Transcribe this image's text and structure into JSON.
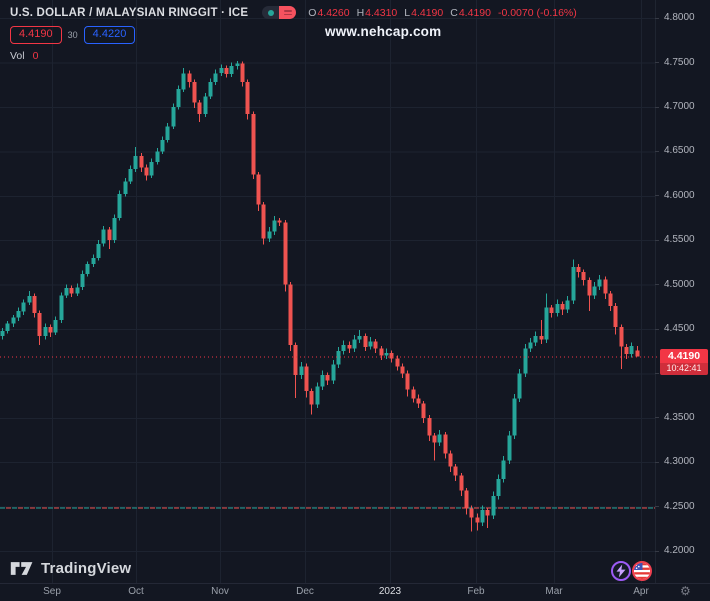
{
  "header": {
    "symbol": "U.S. DOLLAR / MALAYSIAN RINGGIT · ICE",
    "ohlc": {
      "open_label": "O",
      "open": "4.4260",
      "high_label": "H",
      "high": "4.4310",
      "low_label": "L",
      "low": "4.4190",
      "close_label": "C",
      "close": "4.4190",
      "change": "-0.0070 (-0.16%)"
    },
    "quote": {
      "bid": "4.4190",
      "spread": "30",
      "ask": "4.4220"
    },
    "volume": {
      "label": "Vol",
      "value": "0"
    }
  },
  "watermark": "www.nehcap.com",
  "price_badge": {
    "price": "4.4190",
    "countdown": "10:42:41",
    "bg": "#f23645"
  },
  "footer": {
    "brand": "TradingView"
  },
  "chart_data": {
    "type": "candlestick",
    "title": "U.S. Dollar / Malaysian Ringgit",
    "exchange": "ICE",
    "ylim": [
      4.2,
      4.8
    ],
    "grid": true,
    "colors": {
      "up": "#26a69a",
      "down": "#ef5350",
      "grid": "#1d2330",
      "price_line": "#f23645"
    },
    "price_axis": {
      "ticks": [
        {
          "label": "4.8000",
          "value": 4.8
        },
        {
          "label": "4.7500",
          "value": 4.75
        },
        {
          "label": "4.7000",
          "value": 4.7
        },
        {
          "label": "4.6500",
          "value": 4.65
        },
        {
          "label": "4.6000",
          "value": 4.6
        },
        {
          "label": "4.5500",
          "value": 4.55
        },
        {
          "label": "4.5000",
          "value": 4.5
        },
        {
          "label": "4.4500",
          "value": 4.45
        },
        {
          "label": "4.4000",
          "value": 4.4
        },
        {
          "label": "4.3500",
          "value": 4.35
        },
        {
          "label": "4.3000",
          "value": 4.3
        },
        {
          "label": "4.2500",
          "value": 4.25
        },
        {
          "label": "4.2000",
          "value": 4.2
        }
      ]
    },
    "time_axis": {
      "ticks": [
        {
          "label": "Sep",
          "x": 52
        },
        {
          "label": "Oct",
          "x": 136
        },
        {
          "label": "Nov",
          "x": 220
        },
        {
          "label": "Dec",
          "x": 305
        },
        {
          "label": "2023",
          "x": 390,
          "year": true
        },
        {
          "label": "Feb",
          "x": 476
        },
        {
          "label": "Mar",
          "x": 554
        },
        {
          "label": "Apr",
          "x": 641
        }
      ]
    },
    "last_price": 4.419,
    "level_line": {
      "value": 4.249,
      "colors": [
        "#26a69a",
        "#ef5350"
      ]
    },
    "candles": [
      [
        4.442,
        4.451,
        4.438,
        4.448
      ],
      [
        4.448,
        4.459,
        4.445,
        4.456
      ],
      [
        4.456,
        4.466,
        4.452,
        4.463
      ],
      [
        4.463,
        4.474,
        4.459,
        4.47
      ],
      [
        4.47,
        4.483,
        4.466,
        4.48
      ],
      [
        4.48,
        4.493,
        4.477,
        4.487
      ],
      [
        4.487,
        4.49,
        4.463,
        4.468
      ],
      [
        4.468,
        4.471,
        4.432,
        4.442
      ],
      [
        4.442,
        4.456,
        4.438,
        4.452
      ],
      [
        4.452,
        4.455,
        4.441,
        4.446
      ],
      [
        4.446,
        4.464,
        4.443,
        4.46
      ],
      [
        4.46,
        4.491,
        4.457,
        4.488
      ],
      [
        4.488,
        4.5,
        4.485,
        4.496
      ],
      [
        4.496,
        4.499,
        4.486,
        4.49
      ],
      [
        4.49,
        4.501,
        4.487,
        4.497
      ],
      [
        4.497,
        4.516,
        4.494,
        4.512
      ],
      [
        4.512,
        4.526,
        4.509,
        4.523
      ],
      [
        4.523,
        4.534,
        4.52,
        4.53
      ],
      [
        4.53,
        4.55,
        4.527,
        4.546
      ],
      [
        4.546,
        4.566,
        4.543,
        4.562
      ],
      [
        4.562,
        4.565,
        4.54,
        4.55
      ],
      [
        4.55,
        4.579,
        4.547,
        4.575
      ],
      [
        4.575,
        4.606,
        4.572,
        4.602
      ],
      [
        4.602,
        4.62,
        4.599,
        4.616
      ],
      [
        4.616,
        4.634,
        4.613,
        4.63
      ],
      [
        4.63,
        4.655,
        4.627,
        4.645
      ],
      [
        4.645,
        4.648,
        4.627,
        4.632
      ],
      [
        4.632,
        4.635,
        4.617,
        4.623
      ],
      [
        4.623,
        4.642,
        4.62,
        4.638
      ],
      [
        4.638,
        4.654,
        4.635,
        4.65
      ],
      [
        4.65,
        4.667,
        4.647,
        4.663
      ],
      [
        4.663,
        4.682,
        4.66,
        4.678
      ],
      [
        4.678,
        4.704,
        4.675,
        4.7
      ],
      [
        4.7,
        4.724,
        4.697,
        4.72
      ],
      [
        4.72,
        4.744,
        4.717,
        4.738
      ],
      [
        4.738,
        4.741,
        4.722,
        4.728
      ],
      [
        4.728,
        4.731,
        4.699,
        4.705
      ],
      [
        4.705,
        4.708,
        4.683,
        4.692
      ],
      [
        4.692,
        4.716,
        4.689,
        4.712
      ],
      [
        4.712,
        4.732,
        4.709,
        4.728
      ],
      [
        4.728,
        4.742,
        4.725,
        4.738
      ],
      [
        4.738,
        4.748,
        4.735,
        4.744
      ],
      [
        4.744,
        4.747,
        4.733,
        4.737
      ],
      [
        4.737,
        4.75,
        4.734,
        4.746
      ],
      [
        4.746,
        4.752,
        4.742,
        4.749
      ],
      [
        4.749,
        4.751,
        4.723,
        4.728
      ],
      [
        4.728,
        4.731,
        4.686,
        4.692
      ],
      [
        4.692,
        4.695,
        4.619,
        4.624
      ],
      [
        4.624,
        4.627,
        4.583,
        4.59
      ],
      [
        4.59,
        4.593,
        4.545,
        4.552
      ],
      [
        4.552,
        4.565,
        4.548,
        4.56
      ],
      [
        4.56,
        4.577,
        4.556,
        4.572
      ],
      [
        4.572,
        4.575,
        4.566,
        4.57
      ],
      [
        4.57,
        4.573,
        4.492,
        4.5
      ],
      [
        4.5,
        4.503,
        4.425,
        4.432
      ],
      [
        4.432,
        4.435,
        4.372,
        4.398
      ],
      [
        4.398,
        4.413,
        4.394,
        4.408
      ],
      [
        4.408,
        4.411,
        4.373,
        4.38
      ],
      [
        4.38,
        4.383,
        4.354,
        4.365
      ],
      [
        4.365,
        4.39,
        4.361,
        4.385
      ],
      [
        4.385,
        4.403,
        4.381,
        4.398
      ],
      [
        4.398,
        4.401,
        4.387,
        4.392
      ],
      [
        4.392,
        4.415,
        4.388,
        4.41
      ],
      [
        4.41,
        4.43,
        4.406,
        4.425
      ],
      [
        4.425,
        4.437,
        4.421,
        4.432
      ],
      [
        4.432,
        4.436,
        4.423,
        4.428
      ],
      [
        4.428,
        4.443,
        4.424,
        4.438
      ],
      [
        4.438,
        4.449,
        4.434,
        4.442
      ],
      [
        4.442,
        4.445,
        4.425,
        4.43
      ],
      [
        4.43,
        4.441,
        4.427,
        4.436
      ],
      [
        4.436,
        4.439,
        4.423,
        4.428
      ],
      [
        4.428,
        4.431,
        4.415,
        4.42
      ],
      [
        4.42,
        4.428,
        4.416,
        4.423
      ],
      [
        4.423,
        4.426,
        4.412,
        4.417
      ],
      [
        4.417,
        4.42,
        4.403,
        4.408
      ],
      [
        4.408,
        4.411,
        4.395,
        4.4
      ],
      [
        4.4,
        4.403,
        4.374,
        4.382
      ],
      [
        4.382,
        4.385,
        4.367,
        4.372
      ],
      [
        4.372,
        4.376,
        4.361,
        4.366
      ],
      [
        4.366,
        4.369,
        4.344,
        4.35
      ],
      [
        4.35,
        4.353,
        4.324,
        4.33
      ],
      [
        4.33,
        4.333,
        4.302,
        4.322
      ],
      [
        4.322,
        4.336,
        4.318,
        4.331
      ],
      [
        4.331,
        4.334,
        4.304,
        4.31
      ],
      [
        4.31,
        4.313,
        4.289,
        4.295
      ],
      [
        4.295,
        4.298,
        4.279,
        4.285
      ],
      [
        4.285,
        4.288,
        4.262,
        4.268
      ],
      [
        4.268,
        4.271,
        4.241,
        4.248
      ],
      [
        4.248,
        4.251,
        4.222,
        4.238
      ],
      [
        4.238,
        4.242,
        4.223,
        4.232
      ],
      [
        4.232,
        4.251,
        4.228,
        4.246
      ],
      [
        4.246,
        4.249,
        4.226,
        4.24
      ],
      [
        4.24,
        4.267,
        4.236,
        4.262
      ],
      [
        4.262,
        4.286,
        4.258,
        4.281
      ],
      [
        4.281,
        4.307,
        4.277,
        4.302
      ],
      [
        4.302,
        4.335,
        4.298,
        4.33
      ],
      [
        4.33,
        4.377,
        4.326,
        4.372
      ],
      [
        4.372,
        4.405,
        4.368,
        4.4
      ],
      [
        4.4,
        4.433,
        4.396,
        4.428
      ],
      [
        4.428,
        4.44,
        4.424,
        4.435
      ],
      [
        4.435,
        4.447,
        4.431,
        4.442
      ],
      [
        4.442,
        4.46,
        4.433,
        4.438
      ],
      [
        4.438,
        4.49,
        4.434,
        4.474
      ],
      [
        4.474,
        4.477,
        4.463,
        4.468
      ],
      [
        4.468,
        4.483,
        4.464,
        4.478
      ],
      [
        4.478,
        4.481,
        4.466,
        4.472
      ],
      [
        4.472,
        4.487,
        4.468,
        4.482
      ],
      [
        4.482,
        4.528,
        4.478,
        4.52
      ],
      [
        4.52,
        4.523,
        4.508,
        4.514
      ],
      [
        4.514,
        4.517,
        4.499,
        4.505
      ],
      [
        4.505,
        4.508,
        4.47,
        4.488
      ],
      [
        4.488,
        4.503,
        4.484,
        4.498
      ],
      [
        4.498,
        4.511,
        4.494,
        4.506
      ],
      [
        4.506,
        4.509,
        4.484,
        4.49
      ],
      [
        4.49,
        4.493,
        4.47,
        4.476
      ],
      [
        4.476,
        4.479,
        4.444,
        4.452
      ],
      [
        4.452,
        4.455,
        4.405,
        4.43
      ],
      [
        4.43,
        4.433,
        4.416,
        4.422
      ],
      [
        4.422,
        4.435,
        4.418,
        4.431
      ],
      [
        4.426,
        4.431,
        4.419,
        4.419
      ]
    ]
  }
}
